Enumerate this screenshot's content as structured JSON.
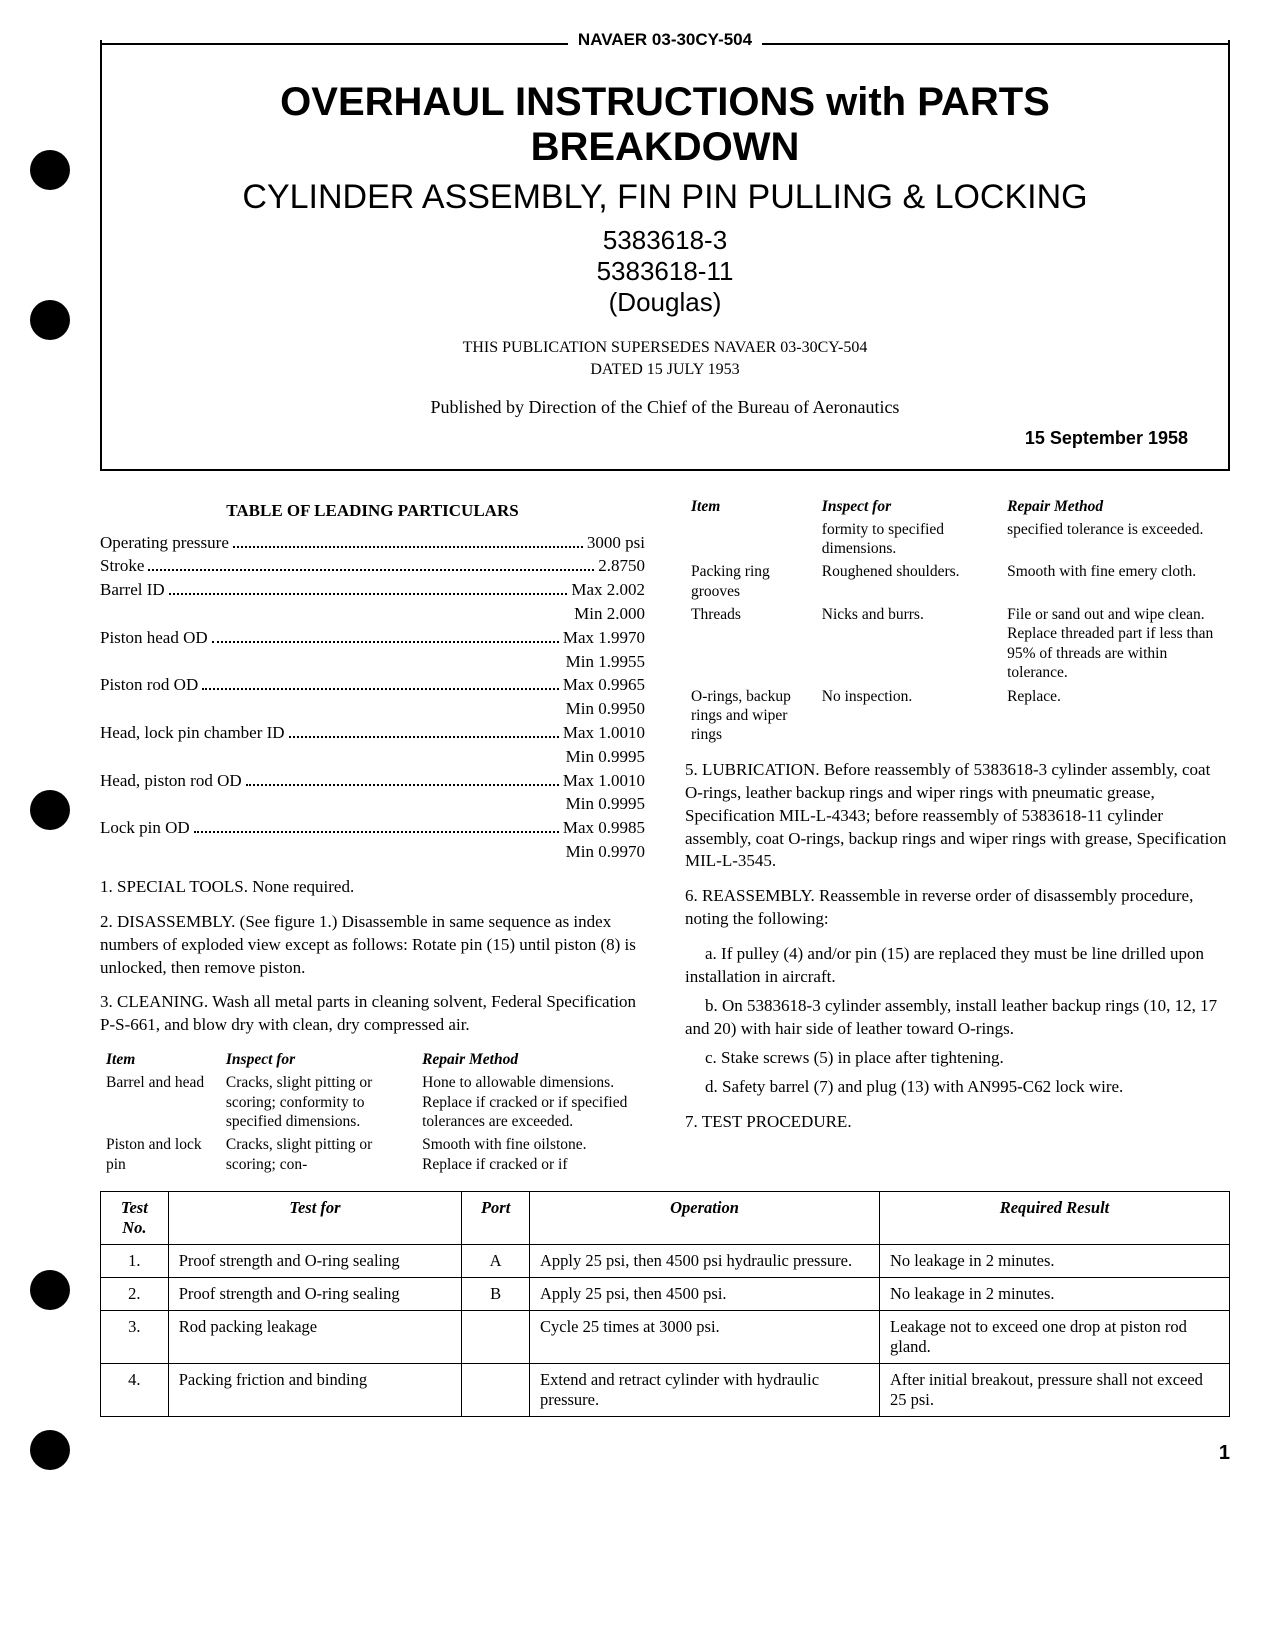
{
  "header": {
    "navaer_id": "NAVAER 03-30CY-504",
    "title_main": "OVERHAUL INSTRUCTIONS with PARTS BREAKDOWN",
    "title_sub": "CYLINDER ASSEMBLY, FIN PIN PULLING & LOCKING",
    "part_no_1": "5383618-3",
    "part_no_2": "5383618-11",
    "mfr": "(Douglas)",
    "supersedes_l1": "THIS PUBLICATION SUPERSEDES NAVAER 03-30CY-504",
    "supersedes_l2": "DATED 15 JULY 1953",
    "publisher": "Published by Direction of the Chief of the Bureau of Aeronautics",
    "date": "15 September 1958"
  },
  "leading": {
    "heading": "TABLE OF LEADING PARTICULARS",
    "rows": [
      {
        "label": "Operating pressure",
        "val": "3000 psi",
        "sub": ""
      },
      {
        "label": "Stroke",
        "val": "2.8750",
        "sub": ""
      },
      {
        "label": "Barrel ID",
        "val": "Max 2.002",
        "sub": "Min 2.000"
      },
      {
        "label": "Piston head OD",
        "val": "Max 1.9970",
        "sub": "Min 1.9955"
      },
      {
        "label": "Piston rod OD",
        "val": "Max 0.9965",
        "sub": "Min 0.9950"
      },
      {
        "label": "Head, lock pin chamber ID",
        "val": "Max 1.0010",
        "sub": "Min 0.9995"
      },
      {
        "label": "Head, piston rod OD",
        "val": "Max 1.0010",
        "sub": "Min 0.9995"
      },
      {
        "label": "Lock pin OD",
        "val": "Max 0.9985",
        "sub": "Min 0.9970"
      }
    ]
  },
  "sections": {
    "s1": "1. SPECIAL TOOLS. None required.",
    "s2": "2. DISASSEMBLY. (See figure 1.) Disassemble in same sequence as index numbers of exploded view except as follows: Rotate pin (15) until piston (8) is unlocked, then remove piston.",
    "s3": "3. CLEANING. Wash all metal parts in cleaning solvent, Federal Specification P-S-661, and blow dry with clean, dry compressed air.",
    "s5": "5. LUBRICATION. Before reassembly of 5383618-3 cylinder assembly, coat O-rings, leather backup rings and wiper rings with pneumatic grease, Specification MIL-L-4343; before reassembly of 5383618-11 cylinder assembly, coat O-rings, backup rings and wiper rings with grease, Specification MIL-L-3545.",
    "s6": "6. REASSEMBLY. Reassemble in reverse order of disassembly procedure, noting the following:",
    "s6a": "a. If pulley (4) and/or pin (15) are replaced they must be line drilled upon installation in aircraft.",
    "s6b": "b. On 5383618-3 cylinder assembly, install leather backup rings (10, 12, 17 and 20) with hair side of leather toward O-rings.",
    "s6c": "c. Stake screws (5) in place after tightening.",
    "s6d": "d. Safety barrel (7) and plug (13) with AN995-C62 lock wire.",
    "s7": "7. TEST PROCEDURE."
  },
  "inspect": {
    "h_item": "Item",
    "h_inspect": "Inspect for",
    "h_repair": "Repair Method",
    "left": [
      {
        "item": "Barrel and head",
        "inspect": "Cracks, slight pitting or scoring; conformity to specified dimensions.",
        "repair": "Hone to allowable dimensions. Replace if cracked or if specified tolerances are exceeded."
      },
      {
        "item": "Piston and lock pin",
        "inspect": "Cracks, slight pitting or scoring; con-",
        "repair": "Smooth with fine oilstone. Replace if cracked or if"
      }
    ],
    "right_cont": {
      "item": "",
      "inspect": "formity to specified dimensions.",
      "repair": "specified tolerance is exceeded."
    },
    "right": [
      {
        "item": "Packing ring grooves",
        "inspect": "Roughened shoulders.",
        "repair": "Smooth with fine emery cloth."
      },
      {
        "item": "Threads",
        "inspect": "Nicks and burrs.",
        "repair": "File or sand out and wipe clean. Replace threaded part if less than 95% of threads are within tolerance."
      },
      {
        "item": "O-rings, backup rings and wiper rings",
        "inspect": "No inspection.",
        "repair": "Replace."
      }
    ]
  },
  "tests": {
    "h_no": "Test No.",
    "h_for": "Test for",
    "h_port": "Port",
    "h_op": "Operation",
    "h_res": "Required Result",
    "rows": [
      {
        "no": "1.",
        "for": "Proof strength and O-ring sealing",
        "port": "A",
        "op": "Apply 25 psi, then 4500 psi hydraulic pressure.",
        "res": "No leakage in 2 minutes."
      },
      {
        "no": "2.",
        "for": "Proof strength and O-ring sealing",
        "port": "B",
        "op": "Apply 25 psi, then 4500 psi.",
        "res": "No leakage in 2 minutes."
      },
      {
        "no": "3.",
        "for": "Rod packing leakage",
        "port": "",
        "op": "Cycle 25 times at 3000 psi.",
        "res": "Leakage not to exceed one drop at piston rod gland."
      },
      {
        "no": "4.",
        "for": "Packing friction and binding",
        "port": "",
        "op": "Extend and retract cylinder with hydraulic pressure.",
        "res": "After initial breakout, pressure shall not exceed 25 psi."
      }
    ]
  },
  "page_num": "1"
}
